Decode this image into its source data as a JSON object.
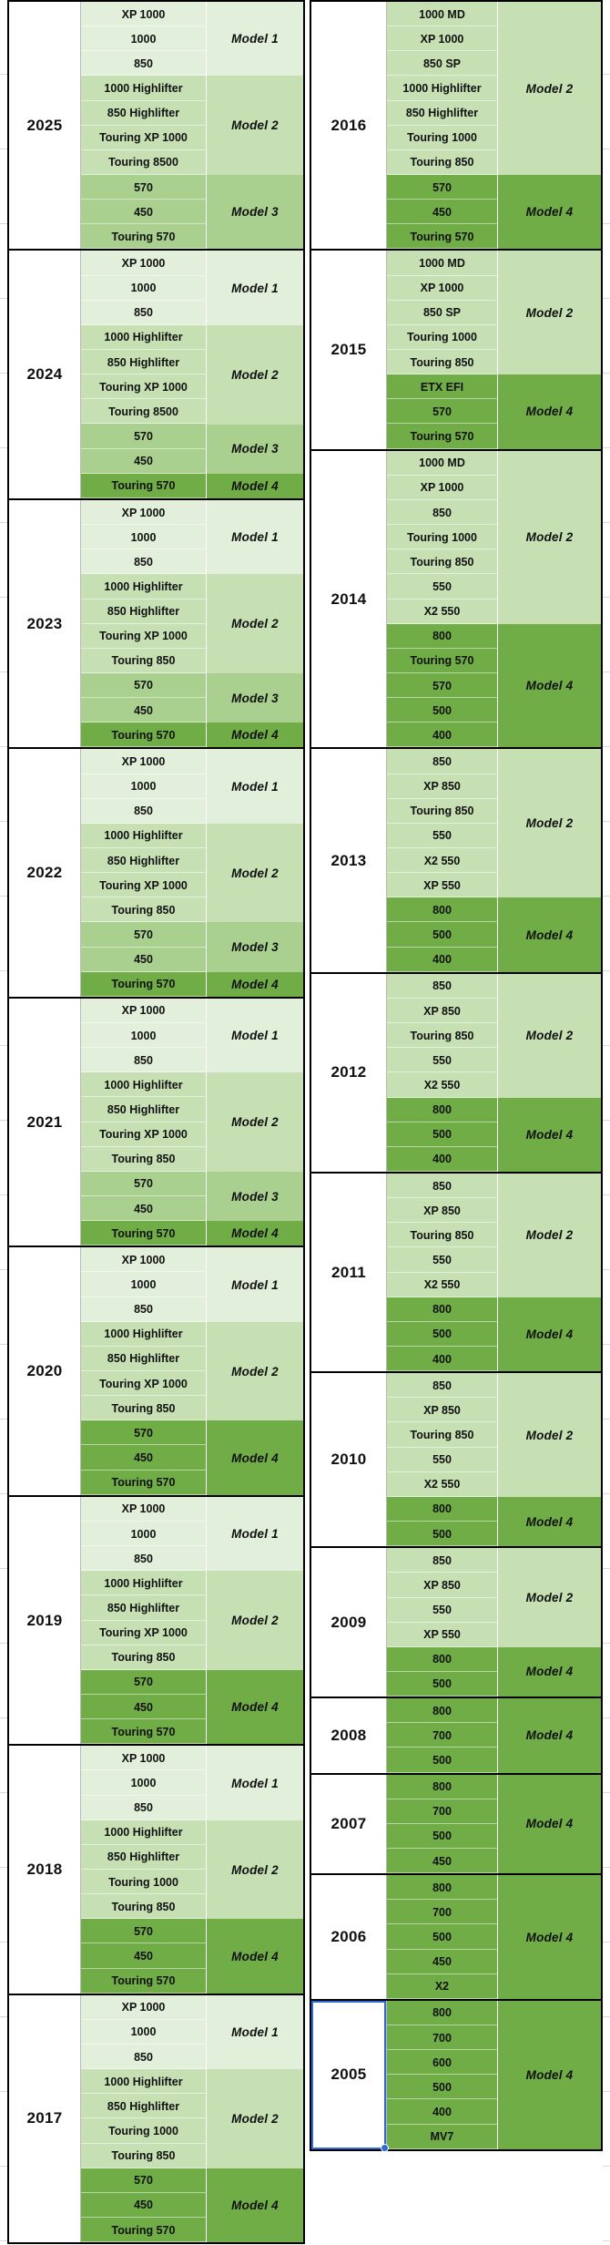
{
  "app": {
    "type": "spreadsheet-model-year-table"
  },
  "colors": {
    "model1": "#E2EFDA",
    "model2": "#C6E0B4",
    "model3": "#A9D08E",
    "model4": "#70AD47",
    "block_border": "#000000",
    "selection": "#2E6BD8",
    "grid_stub": "#CFCFCF"
  },
  "selection": {
    "selected_year": "2005"
  },
  "columns": [
    {
      "name": "left",
      "blocks": [
        {
          "year": "2025",
          "groups": [
            {
              "label": "Model 1",
              "color": "model1",
              "models": [
                "XP 1000",
                "1000",
                "850"
              ]
            },
            {
              "label": "Model 2",
              "color": "model2",
              "models": [
                "1000 Highlifter",
                "850 Highlifter",
                "Touring XP 1000",
                "Touring 8500"
              ]
            },
            {
              "label": "Model 3",
              "color": "model3",
              "models": [
                "570",
                "450",
                "Touring 570"
              ]
            }
          ]
        },
        {
          "year": "2024",
          "groups": [
            {
              "label": "Model 1",
              "color": "model1",
              "models": [
                "XP 1000",
                "1000",
                "850"
              ]
            },
            {
              "label": "Model 2",
              "color": "model2",
              "models": [
                "1000 Highlifter",
                "850 Highlifter",
                "Touring XP 1000",
                "Touring 8500"
              ]
            },
            {
              "label": "Model 3",
              "color": "model3",
              "models": [
                "570",
                "450"
              ]
            },
            {
              "label": "Model 4",
              "color": "model4",
              "models": [
                "Touring 570"
              ]
            }
          ]
        },
        {
          "year": "2023",
          "groups": [
            {
              "label": "Model 1",
              "color": "model1",
              "models": [
                "XP 1000",
                "1000",
                "850"
              ]
            },
            {
              "label": "Model 2",
              "color": "model2",
              "models": [
                "1000 Highlifter",
                "850 Highlifter",
                "Touring XP 1000",
                "Touring 850"
              ]
            },
            {
              "label": "Model 3",
              "color": "model3",
              "models": [
                "570",
                "450"
              ]
            },
            {
              "label": "Model 4",
              "color": "model4",
              "models": [
                "Touring 570"
              ]
            }
          ]
        },
        {
          "year": "2022",
          "groups": [
            {
              "label": "Model 1",
              "color": "model1",
              "models": [
                "XP 1000",
                "1000",
                "850"
              ]
            },
            {
              "label": "Model 2",
              "color": "model2",
              "models": [
                "1000 Highlifter",
                "850 Highlifter",
                "Touring XP 1000",
                "Touring 850"
              ]
            },
            {
              "label": "Model 3",
              "color": "model3",
              "models": [
                "570",
                "450"
              ]
            },
            {
              "label": "Model 4",
              "color": "model4",
              "models": [
                "Touring 570"
              ]
            }
          ]
        },
        {
          "year": "2021",
          "groups": [
            {
              "label": "Model 1",
              "color": "model1",
              "models": [
                "XP 1000",
                "1000",
                "850"
              ]
            },
            {
              "label": "Model 2",
              "color": "model2",
              "models": [
                "1000 Highlifter",
                "850 Highlifter",
                "Touring XP 1000",
                "Touring 850"
              ]
            },
            {
              "label": "Model 3",
              "color": "model3",
              "models": [
                "570",
                "450"
              ]
            },
            {
              "label": "Model 4",
              "color": "model4",
              "models": [
                "Touring 570"
              ]
            }
          ]
        },
        {
          "year": "2020",
          "groups": [
            {
              "label": "Model 1",
              "color": "model1",
              "models": [
                "XP 1000",
                "1000",
                "850"
              ]
            },
            {
              "label": "Model 2",
              "color": "model2",
              "models": [
                "1000 Highlifter",
                "850 Highlifter",
                "Touring XP 1000",
                "Touring 850"
              ]
            },
            {
              "label": "Model 4",
              "color": "model4",
              "models": [
                "570",
                "450",
                "Touring 570"
              ]
            }
          ]
        },
        {
          "year": "2019",
          "groups": [
            {
              "label": "Model 1",
              "color": "model1",
              "models": [
                "XP 1000",
                "1000",
                "850"
              ]
            },
            {
              "label": "Model 2",
              "color": "model2",
              "models": [
                "1000 Highlifter",
                "850 Highlifter",
                "Touring XP 1000",
                "Touring 850"
              ]
            },
            {
              "label": "Model 4",
              "color": "model4",
              "models": [
                "570",
                "450",
                "Touring 570"
              ]
            }
          ]
        },
        {
          "year": "2018",
          "groups": [
            {
              "label": "Model 1",
              "color": "model1",
              "models": [
                "XP 1000",
                "1000",
                "850"
              ]
            },
            {
              "label": "Model 2",
              "color": "model2",
              "models": [
                "1000 Highlifter",
                "850 Highlifter",
                "Touring 1000",
                "Touring 850"
              ]
            },
            {
              "label": "Model 4",
              "color": "model4",
              "models": [
                "570",
                "450",
                "Touring 570"
              ]
            }
          ]
        },
        {
          "year": "2017",
          "groups": [
            {
              "label": "Model 1",
              "color": "model1",
              "models": [
                "XP 1000",
                "1000",
                "850"
              ]
            },
            {
              "label": "Model 2",
              "color": "model2",
              "models": [
                "1000 Highlifter",
                "850 Highlifter",
                "Touring 1000",
                "Touring 850"
              ]
            },
            {
              "label": "Model 4",
              "color": "model4",
              "models": [
                "570",
                "450",
                "Touring 570"
              ]
            }
          ]
        }
      ]
    },
    {
      "name": "right",
      "blocks": [
        {
          "year": "2016",
          "groups": [
            {
              "label": "Model 2",
              "color": "model2",
              "models": [
                "1000 MD",
                "XP 1000",
                "850 SP",
                "1000 Highlifter",
                "850 Highlifter",
                "Touring 1000",
                "Touring 850"
              ]
            },
            {
              "label": "Model 4",
              "color": "model4",
              "models": [
                "570",
                "450",
                "Touring 570"
              ]
            }
          ]
        },
        {
          "year": "2015",
          "groups": [
            {
              "label": "Model 2",
              "color": "model2",
              "models": [
                "1000 MD",
                "XP 1000",
                "850 SP",
                "Touring 1000",
                "Touring 850"
              ]
            },
            {
              "label": "Model 4",
              "color": "model4",
              "models": [
                "ETX EFI",
                "570",
                "Touring 570"
              ]
            }
          ]
        },
        {
          "year": "2014",
          "groups": [
            {
              "label": "Model 2",
              "color": "model2",
              "models": [
                "1000 MD",
                "XP 1000",
                "850",
                "Touring 1000",
                "Touring 850",
                "550",
                "X2 550"
              ]
            },
            {
              "label": "Model 4",
              "color": "model4",
              "models": [
                "800",
                "Touring 570",
                "570",
                "500",
                "400"
              ]
            }
          ]
        },
        {
          "year": "2013",
          "groups": [
            {
              "label": "Model 2",
              "color": "model2",
              "models": [
                "850",
                "XP 850",
                "Touring 850",
                "550",
                "X2 550",
                "XP 550"
              ]
            },
            {
              "label": "Model 4",
              "color": "model4",
              "models": [
                "800",
                "500",
                "400"
              ]
            }
          ]
        },
        {
          "year": "2012",
          "groups": [
            {
              "label": "Model 2",
              "color": "model2",
              "models": [
                "850",
                "XP 850",
                "Touring 850",
                "550",
                "X2 550"
              ]
            },
            {
              "label": "Model 4",
              "color": "model4",
              "models": [
                "800",
                "500",
                "400"
              ]
            }
          ]
        },
        {
          "year": "2011",
          "groups": [
            {
              "label": "Model 2",
              "color": "model2",
              "models": [
                "850",
                "XP 850",
                "Touring 850",
                "550",
                "X2 550"
              ]
            },
            {
              "label": "Model 4",
              "color": "model4",
              "models": [
                "800",
                "500",
                "400"
              ]
            }
          ]
        },
        {
          "year": "2010",
          "groups": [
            {
              "label": "Model 2",
              "color": "model2",
              "models": [
                "850",
                "XP 850",
                "Touring 850",
                "550",
                "X2 550"
              ]
            },
            {
              "label": "Model 4",
              "color": "model4",
              "models": [
                "800",
                "500"
              ]
            }
          ]
        },
        {
          "year": "2009",
          "groups": [
            {
              "label": "Model 2",
              "color": "model2",
              "models": [
                "850",
                "XP 850",
                "550",
                "XP 550"
              ]
            },
            {
              "label": "Model 4",
              "color": "model4",
              "models": [
                "800",
                "500"
              ]
            }
          ]
        },
        {
          "year": "2008",
          "groups": [
            {
              "label": "Model 4",
              "color": "model4",
              "models": [
                "800",
                "700",
                "500"
              ]
            }
          ]
        },
        {
          "year": "2007",
          "groups": [
            {
              "label": "Model 4",
              "color": "model4",
              "models": [
                "800",
                "700",
                "500",
                "450"
              ]
            }
          ]
        },
        {
          "year": "2006",
          "groups": [
            {
              "label": "Model 4",
              "color": "model4",
              "models": [
                "800",
                "700",
                "500",
                "450",
                "X2"
              ]
            }
          ]
        },
        {
          "year": "2005",
          "groups": [
            {
              "label": "Model 4",
              "color": "model4",
              "models": [
                "800",
                "700",
                "600",
                "500",
                "400",
                "MV7"
              ]
            }
          ]
        }
      ]
    }
  ]
}
